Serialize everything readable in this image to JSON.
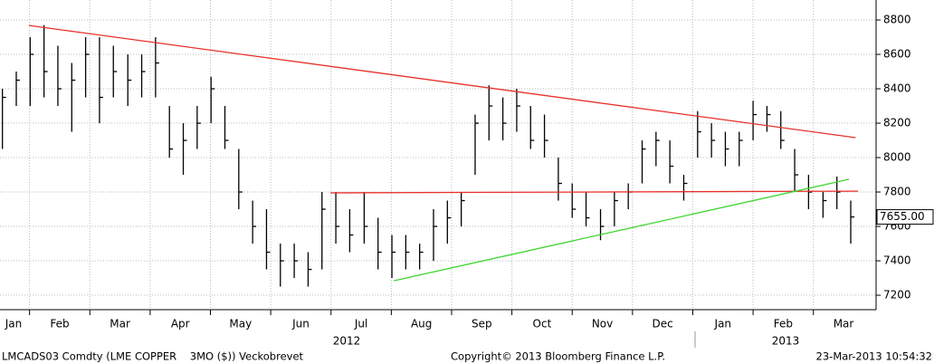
{
  "chart_data": {
    "type": "ohlc",
    "xlim": [
      0.51,
      15.04
    ],
    "xticks": [
      {
        "value": 0.5,
        "label": "Jan"
      },
      {
        "value": 1.5,
        "label": "Feb"
      },
      {
        "value": 2.5,
        "label": "Mar"
      },
      {
        "value": 3.5,
        "label": "Apr"
      },
      {
        "value": 4.5,
        "label": "May"
      },
      {
        "value": 5.5,
        "label": "Jun"
      },
      {
        "value": 6.5,
        "label": "Jul"
      },
      {
        "value": 7.5,
        "label": "Aug"
      },
      {
        "value": 8.5,
        "label": "Sep"
      },
      {
        "value": 9.5,
        "label": "Oct"
      },
      {
        "value": 10.5,
        "label": "Nov"
      },
      {
        "value": 11.5,
        "label": "Dec"
      },
      {
        "value": 12.5,
        "label": "Jan"
      },
      {
        "value": 13.5,
        "label": "Feb"
      },
      {
        "value": 14.5,
        "label": "Mar"
      }
    ],
    "ylim": [
      7116,
      8916
    ],
    "yticks": [
      7200,
      7400,
      7600,
      7800,
      8000,
      8200,
      8400,
      8600,
      8800
    ],
    "grid": true,
    "year_labels": [
      "2012",
      "2013"
    ],
    "x": [
      0.55,
      0.78,
      1.01,
      1.24,
      1.47,
      1.7,
      1.93,
      2.16,
      2.39,
      2.63,
      2.86,
      3.09,
      3.32,
      3.55,
      3.78,
      4.01,
      4.24,
      4.47,
      4.7,
      4.93,
      5.16,
      5.39,
      5.62,
      5.85,
      6.08,
      6.31,
      6.55,
      6.78,
      7.01,
      7.24,
      7.47,
      7.7,
      7.93,
      8.16,
      8.39,
      8.62,
      8.85,
      9.08,
      9.31,
      9.54,
      9.77,
      10.0,
      10.23,
      10.47,
      10.7,
      10.93,
      11.16,
      11.39,
      11.62,
      11.85,
      12.08,
      12.31,
      12.54,
      12.77,
      13.0,
      13.23,
      13.46,
      13.69,
      13.92,
      14.16,
      14.39,
      14.62
    ],
    "series": [
      {
        "color": "#000000",
        "high": [
          8400,
          8500,
          8700,
          8770,
          8650,
          8550,
          8700,
          8700,
          8650,
          8600,
          8600,
          8700,
          8300,
          8200,
          8300,
          8470,
          8300,
          8050,
          7750,
          7700,
          7500,
          7500,
          7450,
          7800,
          7800,
          7700,
          7800,
          7650,
          7550,
          7550,
          7500,
          7700,
          7750,
          7800,
          8250,
          8420,
          8350,
          8400,
          8300,
          8250,
          8000,
          7850,
          7800,
          7700,
          7800,
          7850,
          8100,
          8150,
          8100,
          7900,
          8270,
          8200,
          8150,
          8150,
          8330,
          8300,
          8270,
          8050,
          7900,
          7800,
          7890,
          7750
        ],
        "low": [
          8050,
          8300,
          8300,
          8350,
          8300,
          8150,
          8350,
          8200,
          8350,
          8300,
          8350,
          8350,
          8000,
          7900,
          8050,
          8200,
          8050,
          7700,
          7500,
          7350,
          7250,
          7300,
          7250,
          7350,
          7500,
          7450,
          7500,
          7350,
          7300,
          7350,
          7350,
          7400,
          7500,
          7600,
          7900,
          8100,
          8100,
          8150,
          8050,
          8000,
          7750,
          7650,
          7600,
          7520,
          7600,
          7700,
          7850,
          7950,
          7850,
          7750,
          8000,
          8000,
          7950,
          7950,
          8100,
          8150,
          8050,
          7800,
          7700,
          7650,
          7700,
          7500
        ],
        "close": [
          8350,
          8450,
          8600,
          8500,
          8400,
          8450,
          8600,
          8350,
          8500,
          8450,
          8500,
          8550,
          8050,
          8100,
          8200,
          8400,
          8100,
          7800,
          7600,
          7450,
          7400,
          7400,
          7350,
          7700,
          7600,
          7550,
          7600,
          7450,
          7450,
          7450,
          7450,
          7600,
          7650,
          7750,
          8200,
          8300,
          8200,
          8300,
          8100,
          8100,
          7850,
          7700,
          7650,
          7600,
          7750,
          7800,
          8050,
          8100,
          7950,
          7850,
          8150,
          8100,
          8050,
          8100,
          8250,
          8250,
          8100,
          7900,
          7800,
          7750,
          7800,
          7655
        ]
      }
    ],
    "last_price": {
      "value": 7655,
      "label": "7655.00"
    },
    "trendlines": [
      {
        "color": "#e8302a",
        "x": [
          0.99,
          14.7
        ],
        "y": [
          8768,
          8116
        ]
      },
      {
        "color": "#e8302a",
        "x": [
          5.99,
          14.74
        ],
        "y": [
          7795,
          7805
        ]
      },
      {
        "color": "#3fd62f",
        "x": [
          7.04,
          14.59
        ],
        "y": [
          7284,
          7874
        ]
      }
    ],
    "footer": {
      "ticker": "LMCADS03 Comdty (LME COPPER    3MO ($)) Veckobrevet",
      "copyright": "Copyright© 2013 Bloomberg Finance L.P.",
      "timestamp": "23-Mar-2013 10:54:32"
    }
  }
}
